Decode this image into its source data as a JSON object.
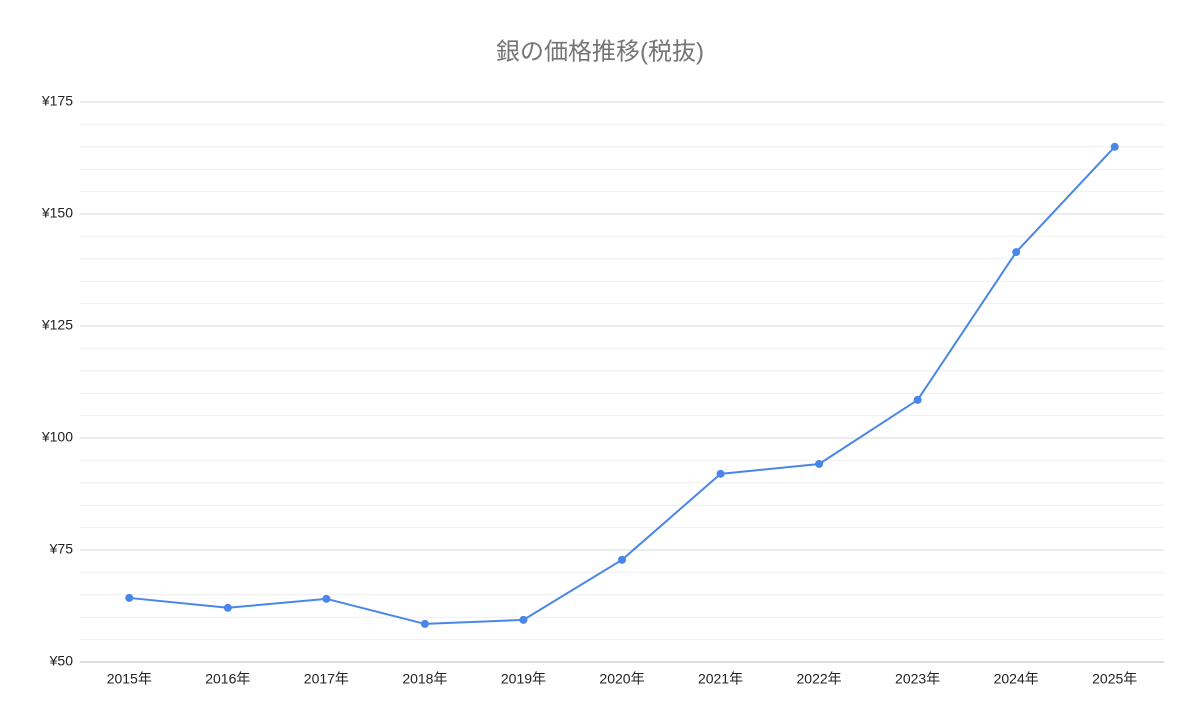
{
  "chart_data": {
    "type": "line",
    "title": "銀の価格推移(税抜)",
    "categories": [
      "2015年",
      "2016年",
      "2017年",
      "2018年",
      "2019年",
      "2020年",
      "2021年",
      "2022年",
      "2023年",
      "2024年",
      "2025年"
    ],
    "series": [
      {
        "color": "#4a86e8",
        "values": [
          64.3,
          62.1,
          64.1,
          58.5,
          59.4,
          72.8,
          92.0,
          94.2,
          108.5,
          141.5,
          165.0
        ]
      }
    ],
    "ylim": [
      50,
      175
    ],
    "yticks": [
      {
        "value": 50,
        "label": "¥50"
      },
      {
        "value": 75,
        "label": "¥75"
      },
      {
        "value": 100,
        "label": "¥100"
      },
      {
        "value": 125,
        "label": "¥125"
      },
      {
        "value": 150,
        "label": "¥150"
      },
      {
        "value": 175,
        "label": "¥175"
      }
    ],
    "yminor": [
      55,
      60,
      65,
      70,
      80,
      85,
      90,
      95,
      105,
      110,
      115,
      120,
      130,
      135,
      140,
      145,
      155,
      160,
      165,
      170
    ],
    "grid": true
  }
}
